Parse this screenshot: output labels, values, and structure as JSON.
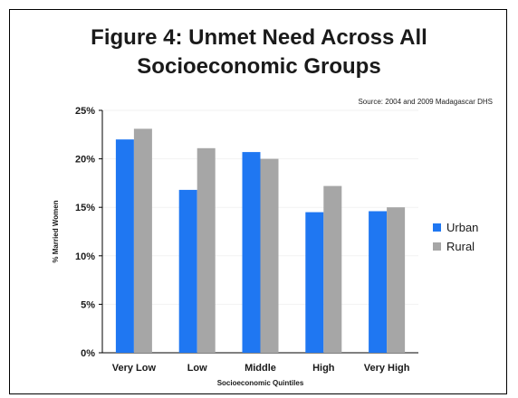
{
  "chart_data": {
    "type": "bar",
    "title": [
      "Figure 4: Unmet Need Across All",
      "Socioeconomic Groups"
    ],
    "source": "Source: 2004 and 2009 Madagascar DHS",
    "xlabel": "Socioeconomic Quintiles",
    "ylabel": "% Married Women",
    "categories": [
      "Very Low",
      "Low",
      "Middle",
      "High",
      "Very High"
    ],
    "series": [
      {
        "name": "Urban",
        "values": [
          22.0,
          16.8,
          20.7,
          14.5,
          14.6
        ],
        "color": "#1f77f2"
      },
      {
        "name": "Rural",
        "values": [
          23.1,
          21.1,
          20.0,
          17.2,
          15.0
        ],
        "color": "#a6a6a6"
      }
    ],
    "ylim": [
      0,
      25
    ],
    "yticks": [
      0,
      5,
      10,
      15,
      20,
      25
    ],
    "ytick_labels": [
      "0%",
      "5%",
      "10%",
      "15%",
      "20%",
      "25%"
    ],
    "grid": false,
    "legend_position": "right"
  }
}
